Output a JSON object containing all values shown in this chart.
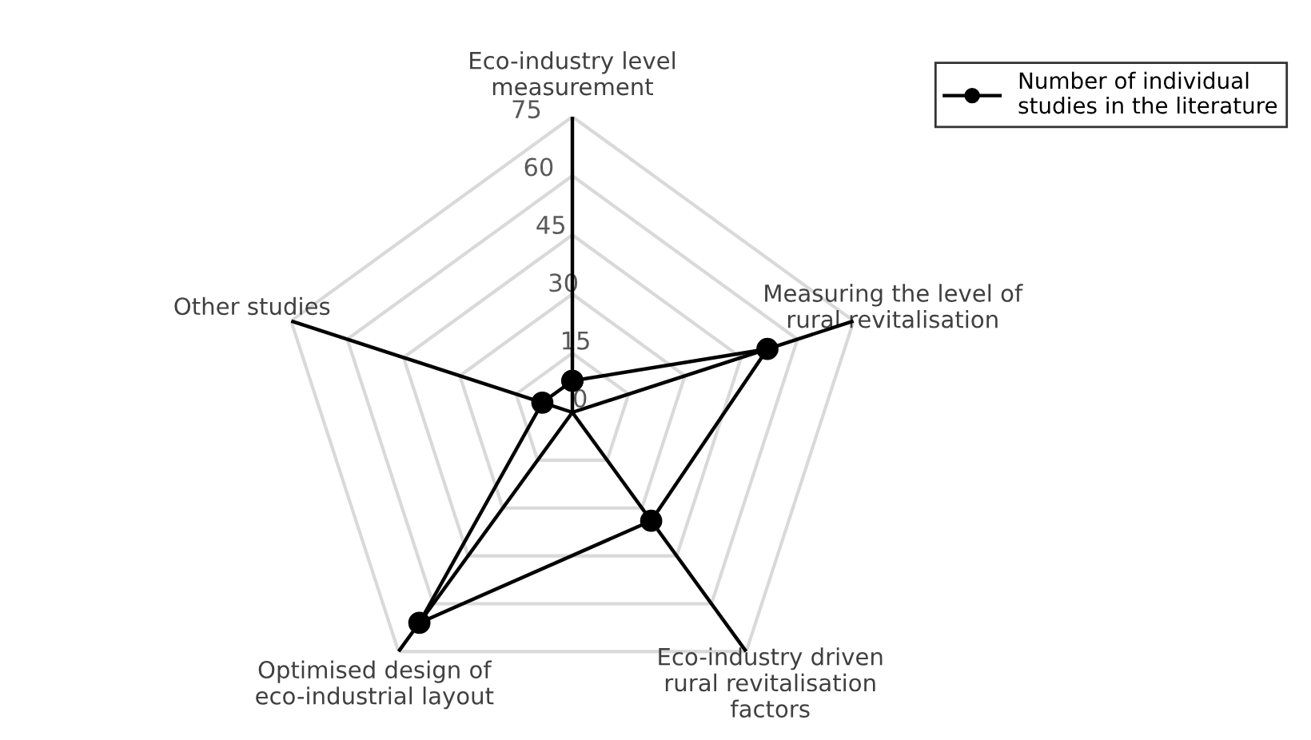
{
  "chart_data": {
    "type": "radar",
    "categories": [
      "Eco-industry level\nmeasurement",
      "Measuring the level of\nrural revitalisation",
      "Eco-industry driven\nrural revitalisation\nfactors",
      "Optimised design of\neco-industrial layout",
      "Other studies"
    ],
    "series": [
      {
        "name": "Number of individual\nstudies in the literature",
        "color": "#000000",
        "values": [
          8,
          52,
          34,
          66,
          8
        ]
      }
    ],
    "ylim": [
      0,
      75
    ],
    "yticks": [
      0,
      15,
      30,
      45,
      60,
      75
    ],
    "grid": true,
    "legend": "top right",
    "marker": "circle",
    "line_style": "solid"
  }
}
